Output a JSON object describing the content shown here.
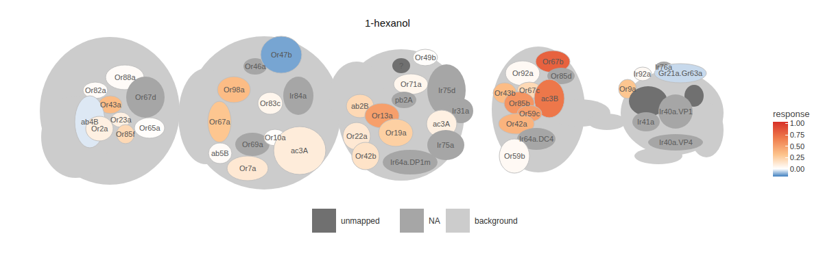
{
  "chart_data": {
    "type": "glomerulus_map",
    "title": "1-hexanol",
    "colorbar": {
      "title": "response",
      "range": [
        -0.17,
        1.04
      ],
      "ticks": [
        {
          "value": 0,
          "label": "0.00"
        },
        {
          "value": 0.25,
          "label": "0.25"
        },
        {
          "value": 0.5,
          "label": "0.50"
        },
        {
          "value": 0.75,
          "label": "0.75"
        },
        {
          "value": 1,
          "label": "1.00"
        }
      ]
    },
    "legend_items": [
      {
        "name": "unmapped",
        "color": "#707070"
      },
      {
        "name": "NA",
        "color": "#a6a6a6"
      },
      {
        "name": "background",
        "color": "#cccccc"
      }
    ],
    "panels": [
      {
        "glomeruli": [
          {
            "name": "Or88a",
            "value": 0.02
          },
          {
            "name": "Or82a",
            "value": 0.02
          },
          {
            "name": "Or67d",
            "value": null,
            "status": "NA"
          },
          {
            "name": "Or43a",
            "value": 0.35
          },
          {
            "name": "ab4B",
            "value": -0.03
          },
          {
            "name": "Or23a",
            "value": 0.08
          },
          {
            "name": "Or2a",
            "value": 0.08
          },
          {
            "name": "Or85f",
            "value": 0.2
          },
          {
            "name": "Or65a",
            "value": 0.01
          }
        ]
      },
      {
        "glomeruli": [
          {
            "name": "Or46a",
            "value": null,
            "status": "NA"
          },
          {
            "name": "Or47b",
            "value": -0.12
          },
          {
            "name": "Or98a",
            "value": 0.35
          },
          {
            "name": "Ir84a",
            "value": null,
            "status": "NA"
          },
          {
            "name": "Or83c",
            "value": 0.05
          },
          {
            "name": "Or67a",
            "value": 0.3
          },
          {
            "name": "Or69a",
            "value": null,
            "status": "NA"
          },
          {
            "name": "Or10a",
            "value": 0.01
          },
          {
            "name": "ab5B",
            "value": 0.02
          },
          {
            "name": "Or7a",
            "value": 0.12
          },
          {
            "name": "ac3A",
            "value": 0.1
          }
        ]
      },
      {
        "glomeruli": [
          {
            "name": "?",
            "value": null,
            "status": "unmapped"
          },
          {
            "name": "Or49b",
            "value": 0.01
          },
          {
            "name": "Or71a",
            "value": 0.05
          },
          {
            "name": "Ir75d",
            "value": null,
            "status": "NA"
          },
          {
            "name": "pb2A",
            "value": null,
            "status": "NA"
          },
          {
            "name": "ab2B",
            "value": 0.2
          },
          {
            "name": "Or13a",
            "value": 0.5
          },
          {
            "name": "Ir31a",
            "value": null,
            "status": "NA"
          },
          {
            "name": "ac3A",
            "value": 0.08
          },
          {
            "name": "Or19a",
            "value": 0.25
          },
          {
            "name": "Or22a",
            "value": 0.12
          },
          {
            "name": "Or42b",
            "value": 0.15
          },
          {
            "name": "Ir75a",
            "value": null,
            "status": "NA"
          },
          {
            "name": "Ir64a.DP1m",
            "value": null,
            "status": "NA"
          }
        ]
      },
      {
        "glomeruli": [
          {
            "name": "Or92a",
            "value": 0.03
          },
          {
            "name": "Or67b",
            "value": 0.8
          },
          {
            "name": "Or85d",
            "value": null,
            "status": "NA"
          },
          {
            "name": "Or43b",
            "value": 0.35
          },
          {
            "name": "Or67c",
            "value": 0.2
          },
          {
            "name": "Or85b",
            "value": 0.55
          },
          {
            "name": "ac3B",
            "value": 0.7
          },
          {
            "name": "Or59c",
            "value": 0.5
          },
          {
            "name": "Or42a",
            "value": 0.4
          },
          {
            "name": "Ir64a.DC4",
            "value": null,
            "status": "NA"
          },
          {
            "name": "Or59b",
            "value": 0.03
          }
        ]
      },
      {
        "glomeruli": [
          {
            "name": "Ir76a",
            "value": null,
            "status": "NA"
          },
          {
            "name": "Ir92a",
            "value": 0.03
          },
          {
            "name": "Gr21a.Gr63a",
            "value": -0.05
          },
          {
            "name": "Or9a",
            "value": 0.3
          },
          {
            "name": null,
            "value": null,
            "status": "unmapped"
          },
          {
            "name": null,
            "value": null,
            "status": "unmapped"
          },
          {
            "name": "Ir40a.VP1",
            "value": null,
            "status": "NA"
          },
          {
            "name": "Ir41a",
            "value": null,
            "status": "NA"
          },
          {
            "name": "Ir40a.VP4",
            "value": null,
            "status": "NA"
          }
        ]
      }
    ]
  }
}
